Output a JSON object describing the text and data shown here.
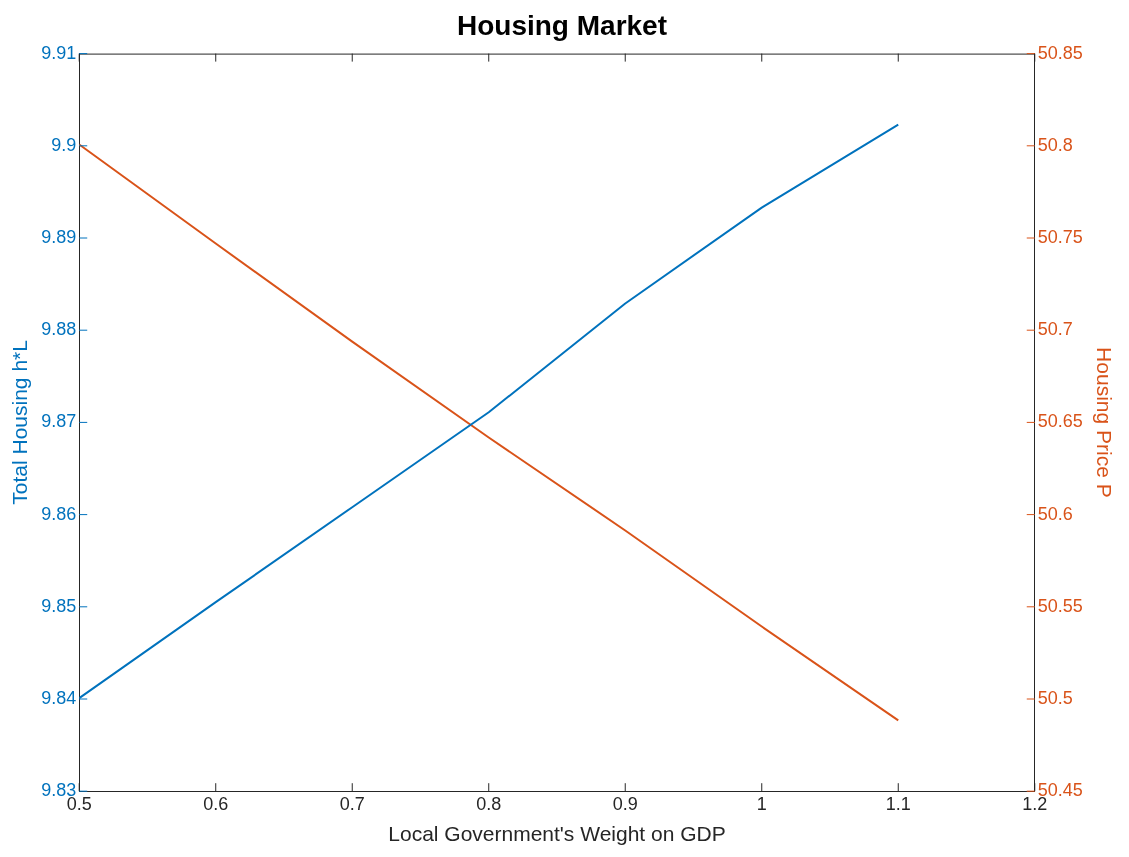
{
  "chart_data": {
    "type": "line",
    "title": "Housing Market",
    "xlabel": "Local Government's Weight on GDP",
    "ylabel": "Total Housing h*L",
    "y2label": "Housing Price P",
    "x": [
      0.5,
      0.6,
      0.7,
      0.8,
      0.9,
      1.0,
      1.1
    ],
    "series": [
      {
        "color": "#0072bd",
        "values": [
          9.8401,
          9.8505,
          9.8608,
          9.8711,
          9.8829,
          9.8933,
          9.9023
        ]
      },
      {
        "color": "#d95319",
        "axis": "y2",
        "values": [
          50.8007,
          50.747,
          50.6938,
          50.6418,
          50.5914,
          50.5393,
          50.4884
        ]
      }
    ],
    "xlim": [
      0.5,
      1.2
    ],
    "xticks": [
      0.5,
      0.6,
      0.7,
      0.8,
      0.9,
      1,
      1.1,
      1.2
    ],
    "ylim": [
      9.83,
      9.91
    ],
    "yticks": [
      9.83,
      9.84,
      9.85,
      9.86,
      9.87,
      9.88,
      9.89,
      9.9,
      9.91
    ],
    "y2lim": [
      50.45,
      50.85
    ],
    "y2ticks": [
      50.45,
      50.5,
      50.55,
      50.6,
      50.65,
      50.7,
      50.75,
      50.8,
      50.85
    ],
    "marker": "none",
    "grid": false
  }
}
